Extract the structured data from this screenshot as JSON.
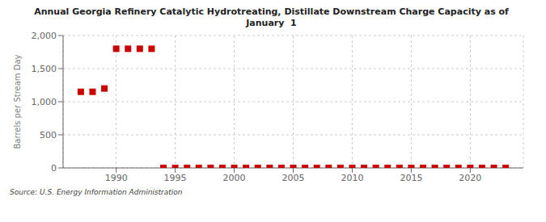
{
  "chart_data": {
    "type": "scatter",
    "title": "Annual Georgia Refinery Catalytic Hydrotreating, Distillate Downstream Charge Capacity as of\nJanuary  1",
    "ylabel": "Barrels per Stream Day",
    "annotations": [
      "Source: U.S. Energy Information Administration"
    ],
    "x": [
      1987,
      1988,
      1989,
      1990,
      1991,
      1992,
      1993,
      1994,
      1995,
      1996,
      1997,
      1998,
      1999,
      2000,
      2001,
      2002,
      2003,
      2004,
      2005,
      2006,
      2007,
      2008,
      2009,
      2010,
      2011,
      2012,
      2013,
      2014,
      2015,
      2016,
      2017,
      2018,
      2019,
      2020,
      2021,
      2022,
      2023
    ],
    "values": [
      1150,
      1150,
      1200,
      1800,
      1800,
      1800,
      1800,
      0,
      0,
      0,
      0,
      0,
      0,
      0,
      0,
      0,
      0,
      0,
      0,
      0,
      0,
      0,
      0,
      0,
      0,
      0,
      0,
      0,
      0,
      0,
      0,
      0,
      0,
      0,
      0,
      0,
      0
    ],
    "color": "#cc0000",
    "marker": "square",
    "xlim": [
      1985.5,
      2024.5
    ],
    "xticks": [
      1990,
      1995,
      2000,
      2005,
      2010,
      2015,
      2020
    ],
    "ylim": [
      0,
      2000
    ],
    "yticks": [
      0,
      500,
      {
        "value": 1000,
        "label": "1,000"
      },
      {
        "value": 1500,
        "label": "1,500"
      },
      {
        "value": 2000,
        "label": "2,000"
      }
    ],
    "grid": true
  }
}
